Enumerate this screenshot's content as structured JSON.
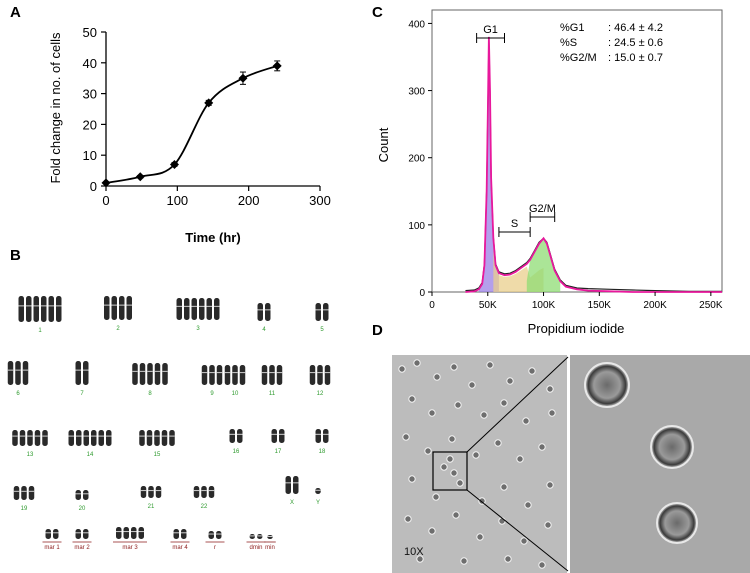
{
  "panels": {
    "a": "A",
    "b": "B",
    "c": "C",
    "d": "D"
  },
  "chart_data": [
    {
      "type": "line",
      "title": "",
      "xlabel": "Time (hr)",
      "ylabel": "Fold change in no. of cells",
      "xlim": [
        0,
        300
      ],
      "ylim": [
        0,
        50
      ],
      "x_ticks": [
        "0",
        "100",
        "200",
        "300"
      ],
      "y_ticks": [
        "0",
        "10",
        "20",
        "30",
        "40",
        "50"
      ],
      "x": [
        0,
        48,
        96,
        144,
        192,
        240
      ],
      "values": [
        1,
        3,
        7,
        27,
        35,
        39
      ],
      "errors": [
        0.3,
        0.4,
        0.6,
        0.8,
        2.0,
        1.6
      ],
      "grid": false,
      "color": "#000000"
    },
    {
      "type": "area",
      "title": "",
      "xlabel": "Propidium iodide",
      "ylabel": "Count",
      "xlim": [
        0,
        260000
      ],
      "ylim": [
        0,
        420
      ],
      "x_ticks": [
        "0",
        "50K",
        "100K",
        "150K",
        "200K",
        "250K"
      ],
      "y_ticks": [
        "0",
        "100",
        "200",
        "300",
        "400"
      ],
      "x": [
        30000,
        38000,
        42000,
        45000,
        47000,
        49000,
        50000,
        51000,
        52000,
        53000,
        55000,
        57000,
        60000,
        65000,
        70000,
        75000,
        80000,
        85000,
        88000,
        92000,
        96000,
        100000,
        103000,
        106000,
        110000,
        115000,
        120000,
        130000,
        140000,
        160000,
        180000,
        200000,
        230000,
        260000
      ],
      "series": [
        {
          "name": "",
          "color": "#e8189c",
          "values": [
            0,
            1,
            4,
            12,
            40,
            150,
            260,
            380,
            300,
            170,
            80,
            40,
            28,
            25,
            26,
            30,
            36,
            42,
            48,
            60,
            72,
            80,
            72,
            55,
            32,
            16,
            8,
            4,
            2,
            1,
            0,
            0,
            0,
            0
          ]
        },
        {
          "name": "",
          "color": "#222222",
          "values": [
            2,
            3,
            6,
            14,
            42,
            152,
            262,
            376,
            298,
            168,
            82,
            42,
            30,
            27,
            28,
            32,
            38,
            44,
            50,
            62,
            74,
            80,
            74,
            57,
            34,
            18,
            10,
            6,
            5,
            4,
            3,
            2,
            1,
            1
          ]
        }
      ],
      "stats": [
        {
          "label": "%G1",
          "value": ": 46.4 ± 4.2"
        },
        {
          "label": "%S",
          "value": ": 24.5 ± 0.6"
        },
        {
          "label": "%G2/M",
          "value": ": 15.0 ± 0.7"
        }
      ],
      "gates": [
        {
          "label": "G1",
          "from": 40000,
          "to": 65000
        },
        {
          "label": "S",
          "from": 60000,
          "to": 88000
        },
        {
          "label": "G2/M",
          "from": 88000,
          "to": 110000
        }
      ],
      "colors": {
        "g1_fill": "#9b7fe6",
        "s_fill": "#e9cf8c",
        "g2_fill": "#8fdc74"
      }
    }
  ],
  "karyotype": {
    "labels": [
      "1",
      "2",
      "3",
      "4",
      "5",
      "6",
      "7",
      "8",
      "9",
      "10",
      "11",
      "12",
      "13",
      "14",
      "15",
      "16",
      "17",
      "18",
      "19",
      "20",
      "21",
      "22",
      "X",
      "Y",
      "mar 1",
      "mar 2",
      "mar 3",
      "mar 4",
      "r",
      "dmin",
      "min"
    ],
    "label_color": "#2e9a2e",
    "marker_label_color": "#8b1a1a"
  },
  "micrograph": {
    "magnification": "10X"
  }
}
